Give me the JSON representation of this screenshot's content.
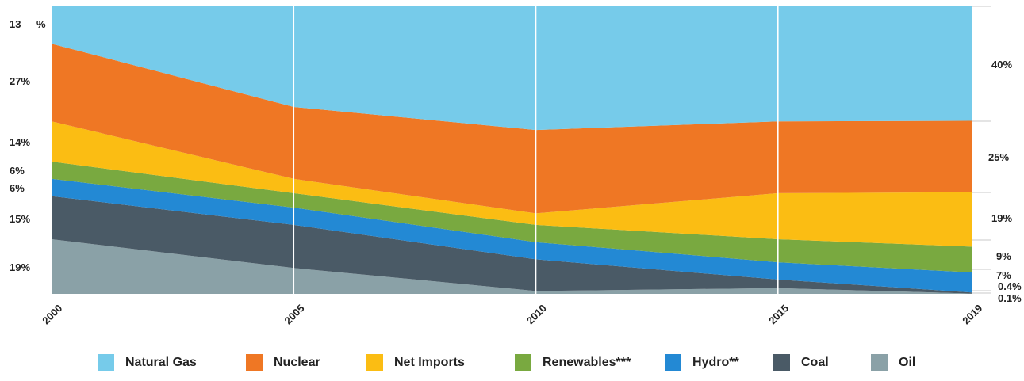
{
  "chart_data": {
    "type": "area",
    "stacked": true,
    "normalized_percent": true,
    "x": [
      2000,
      2005,
      2010,
      2015,
      2019
    ],
    "series": [
      {
        "name": "Oil",
        "legend_label": "Oil",
        "color": "#8aa1a7",
        "values": [
          19,
          9,
          1,
          2,
          0.1
        ]
      },
      {
        "name": "Coal",
        "legend_label": "Coal",
        "color": "#4a5a66",
        "values": [
          15,
          15,
          11,
          3,
          0.4
        ]
      },
      {
        "name": "Hydro",
        "legend_label": "Hydro",
        "suffix": "**",
        "color": "#2389d4",
        "values": [
          6,
          6,
          6,
          6,
          7
        ]
      },
      {
        "name": "Renewables",
        "legend_label": "Renewables",
        "suffix": "***",
        "color": "#79a940",
        "values": [
          6,
          5,
          6,
          8,
          9
        ]
      },
      {
        "name": "Net Imports",
        "legend_label": "Net Imports",
        "color": "#fbbd13",
        "values": [
          14,
          5,
          4,
          16,
          19
        ]
      },
      {
        "name": "Nuclear",
        "legend_label": "Nuclear",
        "color": "#ef7724",
        "values": [
          27,
          25,
          29,
          25,
          25
        ]
      },
      {
        "name": "Natural Gas",
        "legend_label": "Natural Gas",
        "color": "#76cbea",
        "values": [
          13,
          35,
          43,
          40,
          40
        ]
      }
    ],
    "left_labels": [
      "13",
      "%",
      "27%",
      "14%",
      "6%",
      "6%",
      "15%",
      "19%"
    ],
    "right_labels": [
      "40%",
      "25%",
      "19%",
      "9%",
      "7%",
      "0.4%",
      "0.1%"
    ],
    "ylim": [
      0,
      100
    ],
    "grid": "vertical lines at x ticks",
    "legend_position": "bottom"
  }
}
